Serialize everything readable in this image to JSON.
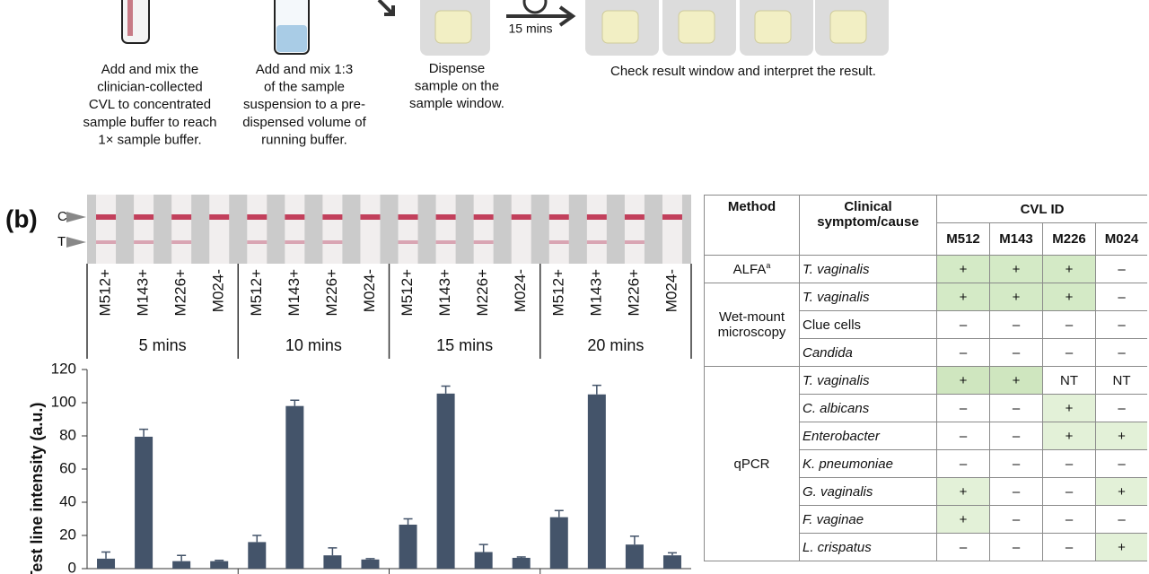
{
  "steps": [
    {
      "lines": [
        "Add and mix the",
        "clinician-collected",
        "CVL to concentrated",
        "sample buffer to reach",
        "1× sample buffer."
      ]
    },
    {
      "lines": [
        "Add and mix 1:3",
        "of the sample",
        "suspension to a pre-",
        "dispensed volume of",
        "running buffer."
      ]
    },
    {
      "lines": [
        "Dispense",
        "sample on the",
        "sample window."
      ]
    },
    {
      "lines": [
        "Check result window and interpret the result."
      ]
    }
  ],
  "timer_label": "15 mins",
  "panel_label": "(b)",
  "strip_labels": [
    "C",
    "T"
  ],
  "chart_data": {
    "type": "bar",
    "ylabel": "Test line intensity (a.u.)",
    "categories": [
      "M512+",
      "M143+",
      "M226+",
      "M024-"
    ],
    "color": "#44546a",
    "ylim": [
      0,
      120
    ],
    "yticks": [
      0,
      20,
      40,
      60,
      80,
      100,
      120
    ],
    "series": [
      {
        "name": "5 mins",
        "values": [
          6,
          79.5,
          4.5,
          4.5
        ],
        "errors": [
          4,
          4.5,
          3.5,
          0.5
        ]
      },
      {
        "name": "10 mins",
        "values": [
          16,
          98,
          8,
          5.5
        ],
        "errors": [
          4,
          3.5,
          4.5,
          0.5
        ]
      },
      {
        "name": "15 mins",
        "values": [
          26.5,
          105.5,
          10,
          6.5
        ],
        "errors": [
          3.5,
          4.5,
          4.5,
          0.5
        ]
      },
      {
        "name": "20 mins",
        "values": [
          31,
          105,
          14.5,
          8
        ],
        "errors": [
          4,
          5.5,
          5,
          1.5
        ]
      }
    ]
  },
  "table": {
    "headers": {
      "method": "Method",
      "cause": "Clinical symptom/cause",
      "cvl": "CVL ID",
      "ids": [
        "M512",
        "M143",
        "M226",
        "M024"
      ]
    },
    "groups": [
      {
        "method": "ALFA",
        "method_sup": "a",
        "rows": [
          {
            "cause": "T. vaginalis",
            "italic": true,
            "results": [
              {
                "text": "+",
                "color": "#d4eac6"
              },
              {
                "text": "+",
                "color": "#d4eac6"
              },
              {
                "text": "+",
                "color": "#d4eac6"
              },
              {
                "text": "–"
              }
            ]
          }
        ]
      },
      {
        "method": "Wet-mount microscopy",
        "rows": [
          {
            "cause": "T. vaginalis",
            "italic": true,
            "results": [
              {
                "text": "+",
                "color": "#d4eac6"
              },
              {
                "text": "+",
                "color": "#d4eac6"
              },
              {
                "text": "+",
                "color": "#d4eac6"
              },
              {
                "text": "–"
              }
            ]
          },
          {
            "cause": "Clue cells",
            "italic": false,
            "results": [
              {
                "text": "–"
              },
              {
                "text": "–"
              },
              {
                "text": "–"
              },
              {
                "text": "–"
              }
            ]
          },
          {
            "cause": "Candida",
            "italic": true,
            "results": [
              {
                "text": "–"
              },
              {
                "text": "–"
              },
              {
                "text": "–"
              },
              {
                "text": "–"
              }
            ]
          }
        ]
      },
      {
        "method": "qPCR",
        "rows": [
          {
            "cause": "T. vaginalis",
            "italic": true,
            "results": [
              {
                "text": "+",
                "color": "#cfe6bf"
              },
              {
                "text": "+",
                "color": "#cfe6bf"
              },
              {
                "text": "NT"
              },
              {
                "text": "NT"
              }
            ]
          },
          {
            "cause": "C. albicans",
            "italic": true,
            "results": [
              {
                "text": "–"
              },
              {
                "text": "–"
              },
              {
                "text": "+",
                "color": "#e3f1d8"
              },
              {
                "text": "–"
              }
            ]
          },
          {
            "cause": "Enterobacter",
            "italic": true,
            "results": [
              {
                "text": "–"
              },
              {
                "text": "–"
              },
              {
                "text": "+",
                "color": "#e3f1d8"
              },
              {
                "text": "+",
                "color": "#e3f1d8"
              }
            ]
          },
          {
            "cause": "K. pneumoniae",
            "italic": true,
            "results": [
              {
                "text": "–"
              },
              {
                "text": "–"
              },
              {
                "text": "–"
              },
              {
                "text": "–"
              }
            ]
          },
          {
            "cause": "G. vaginalis",
            "italic": true,
            "results": [
              {
                "text": "+",
                "color": "#e3f1d8"
              },
              {
                "text": "–"
              },
              {
                "text": "–"
              },
              {
                "text": "+",
                "color": "#e3f1d8"
              }
            ]
          },
          {
            "cause": "F. vaginae",
            "italic": true,
            "results": [
              {
                "text": "+",
                "color": "#e3f1d8"
              },
              {
                "text": "–"
              },
              {
                "text": "–"
              },
              {
                "text": "–"
              }
            ]
          },
          {
            "cause": "L. crispatus",
            "italic": true,
            "results": [
              {
                "text": "–"
              },
              {
                "text": "–"
              },
              {
                "text": "–"
              },
              {
                "text": "+",
                "color": "#e3f1d8"
              }
            ]
          }
        ]
      }
    ]
  }
}
